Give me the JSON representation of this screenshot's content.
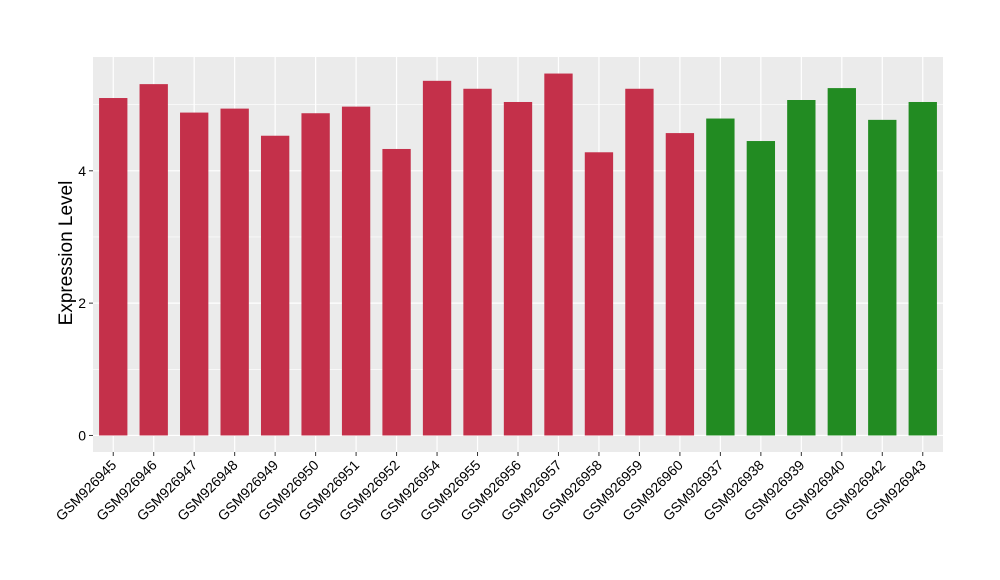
{
  "chart_data": {
    "type": "bar",
    "ylabel": "Expression Level",
    "xlabel": "",
    "ylim": [
      -0.25,
      5.72
    ],
    "yticks": [
      0,
      2,
      4
    ],
    "grid": true,
    "legend": "none",
    "colors": {
      "panel": "#ebebeb",
      "grid_major": "#ffffff",
      "group_1": "#c4304a",
      "group_2": "#228b22"
    },
    "categories": [
      "GSM926945",
      "GSM926946",
      "GSM926947",
      "GSM926948",
      "GSM926949",
      "GSM926950",
      "GSM926951",
      "GSM926952",
      "GSM926954",
      "GSM926955",
      "GSM926956",
      "GSM926957",
      "GSM926958",
      "GSM926959",
      "GSM926960",
      "GSM926937",
      "GSM926938",
      "GSM926939",
      "GSM926940",
      "GSM926942",
      "GSM926943"
    ],
    "values": [
      5.1,
      5.31,
      4.88,
      4.94,
      4.53,
      4.87,
      4.97,
      4.33,
      5.36,
      5.24,
      5.04,
      5.47,
      4.28,
      5.24,
      4.57,
      4.79,
      4.45,
      5.07,
      5.25,
      4.77,
      5.04
    ],
    "bar_colors": [
      "#c4304a",
      "#c4304a",
      "#c4304a",
      "#c4304a",
      "#c4304a",
      "#c4304a",
      "#c4304a",
      "#c4304a",
      "#c4304a",
      "#c4304a",
      "#c4304a",
      "#c4304a",
      "#c4304a",
      "#c4304a",
      "#c4304a",
      "#228b22",
      "#228b22",
      "#228b22",
      "#228b22",
      "#228b22",
      "#228b22"
    ]
  }
}
